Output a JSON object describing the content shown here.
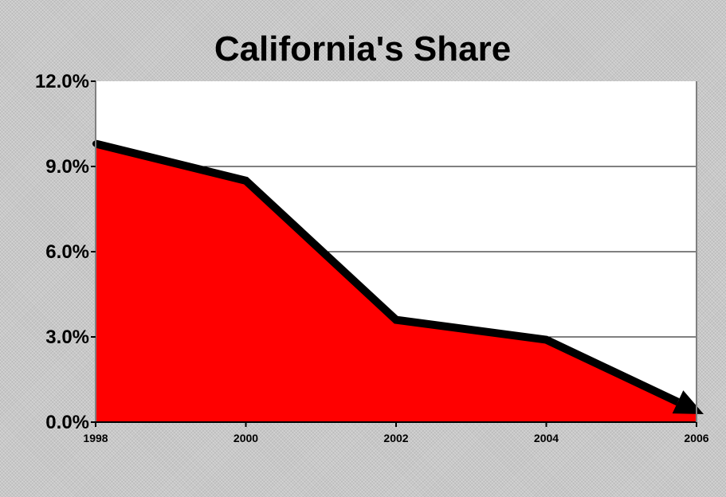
{
  "chart_data": {
    "type": "area",
    "title": "California's Share",
    "xlabel": "",
    "ylabel": "",
    "x": [
      1998,
      2000,
      2002,
      2004,
      2006
    ],
    "x_tick_labels": [
      "1998",
      "2000",
      "2002",
      "2004",
      "2006"
    ],
    "y_ticks": [
      0,
      3,
      6,
      9,
      12
    ],
    "y_tick_labels": [
      "0.0%",
      "3.0%",
      "6.0%",
      "9.0%",
      "12.0%"
    ],
    "ylim": [
      0,
      12
    ],
    "xlim": [
      1998,
      2006
    ],
    "series": [
      {
        "values": [
          9.8,
          8.5,
          3.6,
          2.9,
          0.4
        ],
        "fill_color": "#ff0000",
        "line_color": "#000000"
      }
    ],
    "grid": true,
    "trend_arrow": true,
    "colors": {
      "plot_background": "#ffffff",
      "area": "#ff0000",
      "line": "#000000",
      "gridline": "#000000"
    }
  }
}
